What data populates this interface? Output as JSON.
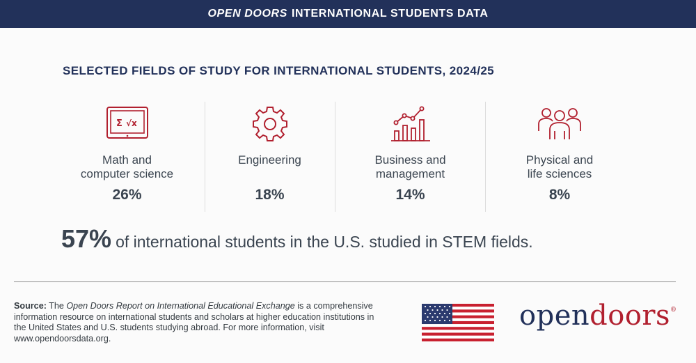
{
  "header": {
    "title_italic": "OPEN DOORS",
    "title_rest": "INTERNATIONAL STUDENTS DATA"
  },
  "heading": "SELECTED FIELDS OF STUDY FOR INTERNATIONAL STUDENTS, 2024/25",
  "fields": [
    {
      "label_line1": "Math and",
      "label_line2": "computer science",
      "percent": "26%",
      "icon": "laptop-math-icon"
    },
    {
      "label_line1": "Engineering",
      "label_line2": "",
      "percent": "18%",
      "icon": "gear-icon"
    },
    {
      "label_line1": "Business and",
      "label_line2": "management",
      "percent": "14%",
      "icon": "bar-chart-icon"
    },
    {
      "label_line1": "Physical and",
      "label_line2": "life sciences",
      "percent": "8%",
      "icon": "people-group-icon"
    }
  ],
  "stem": {
    "percent": "57%",
    "text": "of international students in the U.S. studied in STEM fields."
  },
  "source": {
    "label": "Source:",
    "pre": "The",
    "report_title": "Open Doors Report on International Educational Exchange",
    "body": "is a comprehensive information resource on international students and scholars at higher education institutions in the United States and U.S. students studying abroad. For more information, visit www.opendoorsdata.org."
  },
  "logo": {
    "part1": "open",
    "part2": "doors",
    "mark": "®"
  },
  "colors": {
    "navy": "#22315a",
    "red": "#b1202f",
    "text": "#3a4450"
  }
}
